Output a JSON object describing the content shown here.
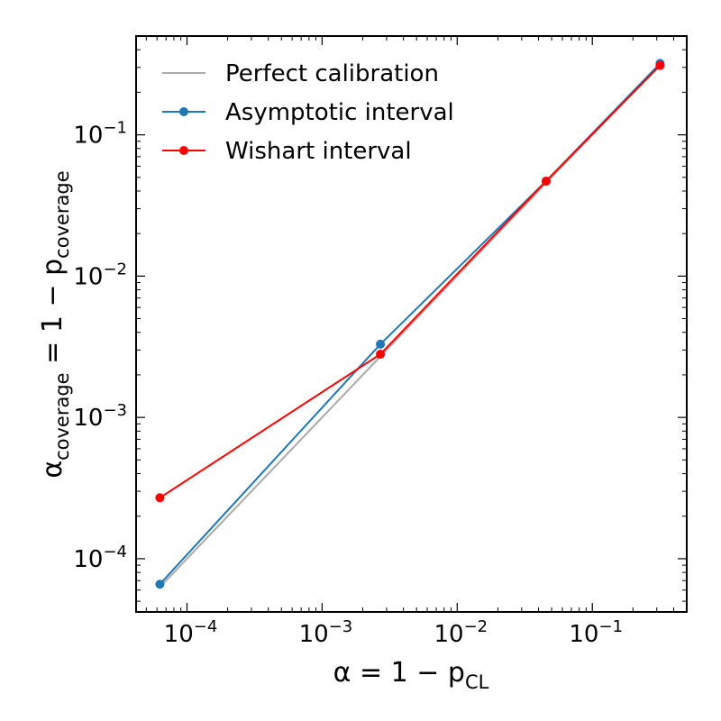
{
  "chart_data": {
    "type": "line",
    "xscale": "log",
    "yscale": "log",
    "xlim": [
      4.2e-05,
      0.5
    ],
    "ylim": [
      4.2e-05,
      0.5
    ],
    "xlabel": {
      "main": "α = 1 − p",
      "sub": "CL"
    },
    "ylabel": {
      "main": "α",
      "sub1": "coverage",
      "mid": " = 1 − p",
      "sub2": "coverage"
    },
    "x_ticks": [
      {
        "value": 0.0001,
        "base": "10",
        "exp": "−4"
      },
      {
        "value": 0.001,
        "base": "10",
        "exp": "−3"
      },
      {
        "value": 0.01,
        "base": "10",
        "exp": "−2"
      },
      {
        "value": 0.1,
        "base": "10",
        "exp": "−1"
      }
    ],
    "y_ticks": [
      {
        "value": 0.0001,
        "base": "10",
        "exp": "−4"
      },
      {
        "value": 0.001,
        "base": "10",
        "exp": "−3"
      },
      {
        "value": 0.01,
        "base": "10",
        "exp": "−2"
      },
      {
        "value": 0.1,
        "base": "10",
        "exp": "−1"
      }
    ],
    "grid": false,
    "legend_position": "top-left",
    "series": [
      {
        "name": "Perfect calibration",
        "color": "#aaaaaa",
        "marker": false,
        "x": [
          6.3e-05,
          0.0027,
          0.0455,
          0.3173
        ],
        "y": [
          6.3e-05,
          0.0027,
          0.0455,
          0.3173
        ]
      },
      {
        "name": "Asymptotic interval",
        "color": "#1f77b4",
        "marker": true,
        "x": [
          6.3e-05,
          0.0027,
          0.0455,
          0.3173
        ],
        "y": [
          6.6e-05,
          0.0033,
          0.047,
          0.32
        ]
      },
      {
        "name": "Wishart interval",
        "color": "#ff0000",
        "marker": true,
        "x": [
          6.3e-05,
          0.0027,
          0.0455,
          0.3173
        ],
        "y": [
          0.00027,
          0.0028,
          0.047,
          0.31
        ]
      }
    ]
  }
}
